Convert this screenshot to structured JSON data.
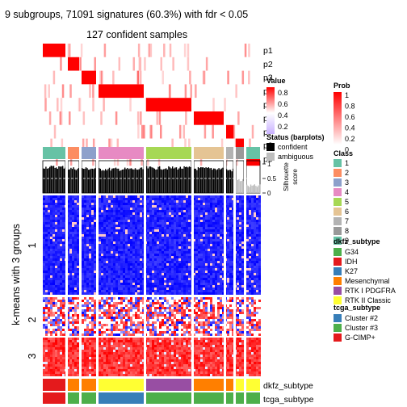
{
  "chart_data": {
    "type": "heatmap",
    "title": "9 subgroups, 71091 signatures (60.3%) with fdr < 0.05",
    "subtitle": "127 confident samples",
    "row_axis_label": "k-means with 3 groups",
    "row_groups": [
      "1",
      "2",
      "3"
    ],
    "prob_rows": [
      "p1",
      "p2",
      "p3",
      "p4",
      "p5",
      "p6",
      "p7",
      "p8",
      "p9"
    ],
    "class_row_label": "Class",
    "silhouette_label": "Silhouette\nscore",
    "silhouette_ticks": [
      "0",
      "0.5",
      "1"
    ],
    "bottom_annotations": [
      "dkfz_subtype",
      "tcga_subtype"
    ],
    "legends": {
      "value": {
        "title": "Value",
        "ticks": [
          "0.8",
          "0.6",
          "0.4",
          "0.2"
        ]
      },
      "prob": {
        "title": "Prob",
        "ticks": [
          "1",
          "0.8",
          "0.6",
          "0.4",
          "0.2",
          "0"
        ]
      },
      "status": {
        "title": "Status (barplots)",
        "items": [
          {
            "label": "confident",
            "color": "#000000"
          },
          {
            "label": "ambiguous",
            "color": "#BEBEBE"
          }
        ]
      },
      "class": {
        "title": "Class",
        "items": [
          {
            "label": "1",
            "color": "#66C2A5"
          },
          {
            "label": "2",
            "color": "#FC8D62"
          },
          {
            "label": "3",
            "color": "#8DA0CB"
          },
          {
            "label": "4",
            "color": "#E78AC3"
          },
          {
            "label": "5",
            "color": "#A6D854"
          },
          {
            "label": "6",
            "color": "#E5C494"
          },
          {
            "label": "7",
            "color": "#B3B3B3"
          },
          {
            "label": "8",
            "color": "#999999"
          },
          {
            "label": "9",
            "color": "#66C2A5"
          }
        ]
      },
      "dkfz": {
        "title": "dkfz_subtype",
        "items": [
          {
            "label": "G34",
            "color": "#4DAF4A"
          },
          {
            "label": "IDH",
            "color": "#E41A1C"
          },
          {
            "label": "K27",
            "color": "#377EB8"
          },
          {
            "label": "Mesenchymal",
            "color": "#FF7F00"
          },
          {
            "label": "RTK I PDGFRA",
            "color": "#984EA3"
          },
          {
            "label": "RTK II Classic",
            "color": "#FFFF33"
          }
        ]
      },
      "tcga": {
        "title": "tcga_subtype",
        "items": [
          {
            "label": "Cluster #2",
            "color": "#377EB8"
          },
          {
            "label": "Cluster #3",
            "color": "#4DAF4A"
          },
          {
            "label": "G-CIMP+",
            "color": "#E41A1C"
          }
        ]
      }
    },
    "colors": {
      "high": "#FF0000",
      "mid": "#FFFFFF",
      "low": "#0000FF",
      "prob_high": "#FF0000",
      "divider": "#ffffff"
    },
    "columns": [
      {
        "class": "1",
        "dkfz": "IDH",
        "tcga": "G-CIMP+",
        "prob": "p1",
        "silhouette": 0.95
      },
      {
        "class": "2",
        "dkfz": "Mesenchymal",
        "tcga": "Cluster #3",
        "prob": "p2",
        "silhouette": 0.9
      },
      {
        "class": "3",
        "dkfz": "Mesenchymal",
        "tcga": "Cluster #3",
        "prob": "p3",
        "silhouette": 0.9
      },
      {
        "class": "4",
        "dkfz": "RTK II Classic",
        "tcga": "Cluster #2",
        "prob": "p4",
        "silhouette": 0.88
      },
      {
        "class": "5",
        "dkfz": "RTK I PDGFRA",
        "tcga": "Cluster #3",
        "prob": "p5",
        "silhouette": 0.92
      },
      {
        "class": "6",
        "dkfz": "Mesenchymal",
        "tcga": "Cluster #3",
        "prob": "p6",
        "silhouette": 0.9
      },
      {
        "class": "7",
        "dkfz": "Mesenchymal",
        "tcga": "Cluster #3",
        "prob": "p7",
        "silhouette": 0.85
      },
      {
        "class": "8",
        "dkfz": "RTK II Classic",
        "tcga": "Cluster #3",
        "prob": "p8",
        "silhouette": 0.5
      },
      {
        "class": "9",
        "dkfz": "RTK II Classic",
        "tcga": "Cluster #3",
        "prob": "p9",
        "silhouette": 0.3
      }
    ]
  }
}
